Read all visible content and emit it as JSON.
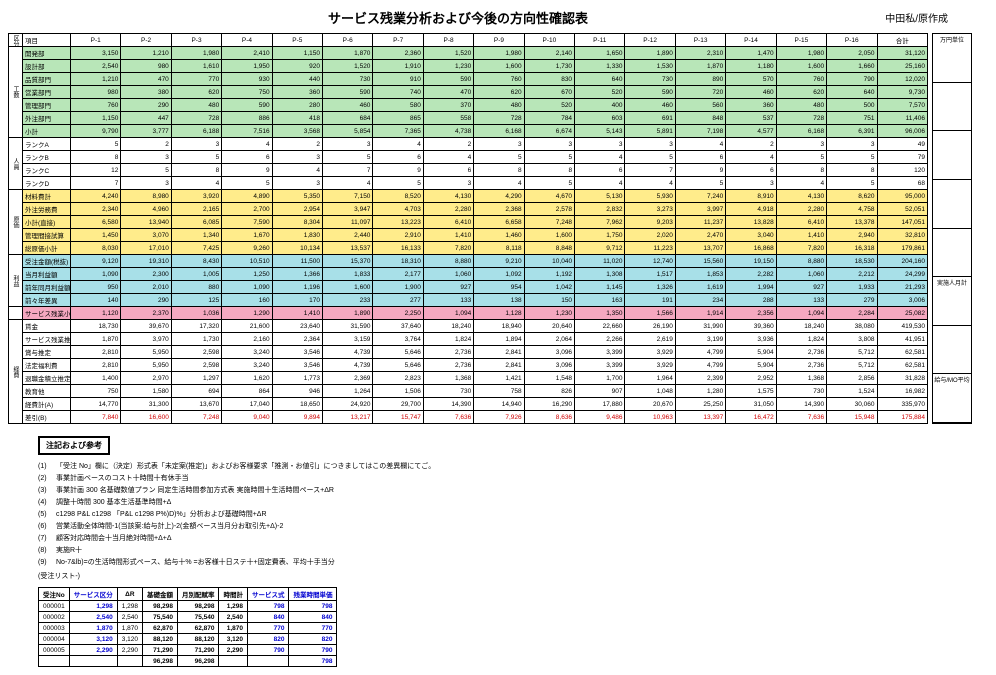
{
  "title": "サービス残業分析および今後の方向性確認表",
  "date_label": "中田私/原作成",
  "columns": [
    "区分",
    "項目",
    "P-1",
    "P-2",
    "P-3",
    "P-4",
    "P-5",
    "P-6",
    "P-7",
    "P-8",
    "P-9",
    "P-10",
    "P-11",
    "P-12",
    "P-13",
    "P-14",
    "P-15",
    "P-16",
    "合計"
  ],
  "side_labels": [
    "万円単位",
    "",
    "",
    "",
    "",
    "実施人月計",
    "",
    "給与/MO平均"
  ],
  "sections": [
    {
      "class": "sec-green",
      "vlabel": "工数",
      "rows": [
        {
          "label": "開発部",
          "v": [
            "3,150",
            "1,210",
            "1,980",
            "2,410",
            "1,150",
            "1,870",
            "2,360",
            "1,520",
            "1,980",
            "2,140",
            "1,650",
            "1,890",
            "2,310",
            "1,470",
            "1,980",
            "2,050",
            "31,120"
          ]
        },
        {
          "label": "設計部",
          "v": [
            "2,540",
            "980",
            "1,610",
            "1,950",
            "920",
            "1,520",
            "1,910",
            "1,230",
            "1,600",
            "1,730",
            "1,330",
            "1,530",
            "1,870",
            "1,180",
            "1,600",
            "1,660",
            "25,160"
          ]
        },
        {
          "label": "品質部門",
          "v": [
            "1,210",
            "470",
            "770",
            "930",
            "440",
            "730",
            "910",
            "590",
            "760",
            "830",
            "640",
            "730",
            "890",
            "570",
            "760",
            "790",
            "12,020"
          ]
        },
        {
          "label": "営業部門",
          "v": [
            "980",
            "380",
            "620",
            "750",
            "360",
            "590",
            "740",
            "470",
            "620",
            "670",
            "520",
            "590",
            "720",
            "460",
            "620",
            "640",
            "9,730"
          ]
        },
        {
          "label": "管理部門",
          "v": [
            "760",
            "290",
            "480",
            "590",
            "280",
            "460",
            "580",
            "370",
            "480",
            "520",
            "400",
            "460",
            "560",
            "360",
            "480",
            "500",
            "7,570"
          ]
        },
        {
          "label": "外注部門",
          "v": [
            "1,150",
            "447",
            "728",
            "886",
            "418",
            "684",
            "865",
            "558",
            "728",
            "784",
            "603",
            "691",
            "848",
            "537",
            "728",
            "751",
            "11,406"
          ]
        },
        {
          "label": "小計",
          "v": [
            "9,790",
            "3,777",
            "6,188",
            "7,516",
            "3,568",
            "5,854",
            "7,365",
            "4,738",
            "6,168",
            "6,674",
            "5,143",
            "5,891",
            "7,198",
            "4,577",
            "6,168",
            "6,391",
            "96,006"
          ]
        }
      ]
    },
    {
      "class": "sec-white",
      "vlabel": "人員",
      "rows": [
        {
          "label": "ランクA",
          "v": [
            "5",
            "2",
            "3",
            "4",
            "2",
            "3",
            "4",
            "2",
            "3",
            "3",
            "3",
            "3",
            "4",
            "2",
            "3",
            "3",
            "49"
          ]
        },
        {
          "label": "ランクB",
          "v": [
            "8",
            "3",
            "5",
            "6",
            "3",
            "5",
            "6",
            "4",
            "5",
            "5",
            "4",
            "5",
            "6",
            "4",
            "5",
            "5",
            "79"
          ]
        },
        {
          "label": "ランクC",
          "v": [
            "12",
            "5",
            "8",
            "9",
            "4",
            "7",
            "9",
            "6",
            "8",
            "8",
            "6",
            "7",
            "9",
            "6",
            "8",
            "8",
            "120"
          ]
        },
        {
          "label": "ランクD",
          "v": [
            "7",
            "3",
            "4",
            "5",
            "3",
            "4",
            "5",
            "3",
            "4",
            "5",
            "4",
            "4",
            "5",
            "3",
            "4",
            "5",
            "68"
          ]
        }
      ]
    },
    {
      "class": "sec-yellow",
      "vlabel": "原価",
      "rows": [
        {
          "label": "材料費計",
          "v": [
            "4,240",
            "8,980",
            "3,920",
            "4,890",
            "5,350",
            "7,150",
            "8,520",
            "4,130",
            "4,290",
            "4,670",
            "5,130",
            "5,930",
            "7,240",
            "8,910",
            "4,130",
            "8,620",
            "95,000"
          ]
        },
        {
          "label": "外注労務費",
          "v": [
            "2,340",
            "4,960",
            "2,165",
            "2,700",
            "2,954",
            "3,947",
            "4,703",
            "2,280",
            "2,368",
            "2,578",
            "2,832",
            "3,273",
            "3,997",
            "4,918",
            "2,280",
            "4,758",
            "52,051"
          ]
        },
        {
          "label": "小計(直接)",
          "v": [
            "6,580",
            "13,940",
            "6,085",
            "7,590",
            "8,304",
            "11,097",
            "13,223",
            "6,410",
            "6,658",
            "7,248",
            "7,962",
            "9,203",
            "11,237",
            "13,828",
            "6,410",
            "13,378",
            "147,051"
          ]
        },
        {
          "label": "管理間接試算",
          "v": [
            "1,450",
            "3,070",
            "1,340",
            "1,670",
            "1,830",
            "2,440",
            "2,910",
            "1,410",
            "1,460",
            "1,600",
            "1,750",
            "2,020",
            "2,470",
            "3,040",
            "1,410",
            "2,940",
            "32,810"
          ]
        },
        {
          "label": "総原価小計",
          "v": [
            "8,030",
            "17,010",
            "7,425",
            "9,260",
            "10,134",
            "13,537",
            "16,133",
            "7,820",
            "8,118",
            "8,848",
            "9,712",
            "11,223",
            "13,707",
            "16,868",
            "7,820",
            "16,318",
            "179,861"
          ]
        }
      ]
    },
    {
      "class": "sec-cyan",
      "vlabel": "利益",
      "rows": [
        {
          "label": "受注金額(税抜)",
          "v": [
            "9,120",
            "19,310",
            "8,430",
            "10,510",
            "11,500",
            "15,370",
            "18,310",
            "8,880",
            "9,210",
            "10,040",
            "11,020",
            "12,740",
            "15,560",
            "19,150",
            "8,880",
            "18,530",
            "204,160"
          ]
        },
        {
          "label": "当月利益額",
          "v": [
            "1,090",
            "2,300",
            "1,005",
            "1,250",
            "1,366",
            "1,833",
            "2,177",
            "1,060",
            "1,092",
            "1,192",
            "1,308",
            "1,517",
            "1,853",
            "2,282",
            "1,060",
            "2,212",
            "24,299"
          ]
        },
        {
          "label": "前年同月利益額",
          "v": [
            "950",
            "2,010",
            "880",
            "1,090",
            "1,196",
            "1,600",
            "1,900",
            "927",
            "954",
            "1,042",
            "1,145",
            "1,326",
            "1,619",
            "1,994",
            "927",
            "1,933",
            "21,293"
          ]
        },
        {
          "label": "前々年差異",
          "v": [
            "140",
            "290",
            "125",
            "160",
            "170",
            "233",
            "277",
            "133",
            "138",
            "150",
            "163",
            "191",
            "234",
            "288",
            "133",
            "279",
            "3,006"
          ]
        }
      ]
    },
    {
      "class": "sec-pink",
      "vlabel": "",
      "rows": [
        {
          "label": "サービス残業小計",
          "v": [
            "1,120",
            "2,370",
            "1,036",
            "1,290",
            "1,410",
            "1,890",
            "2,250",
            "1,094",
            "1,128",
            "1,230",
            "1,350",
            "1,566",
            "1,914",
            "2,356",
            "1,094",
            "2,284",
            "25,082"
          ]
        }
      ]
    },
    {
      "class": "sec-gray",
      "vlabel": "経費",
      "rows": [
        {
          "label": "賃金",
          "v": [
            "18,730",
            "39,670",
            "17,320",
            "21,600",
            "23,640",
            "31,590",
            "37,640",
            "18,240",
            "18,940",
            "20,640",
            "22,660",
            "26,190",
            "31,990",
            "39,360",
            "18,240",
            "38,080",
            "419,530"
          ]
        },
        {
          "label": "サービス残業推定",
          "v": [
            "1,870",
            "3,970",
            "1,730",
            "2,160",
            "2,364",
            "3,159",
            "3,764",
            "1,824",
            "1,894",
            "2,064",
            "2,266",
            "2,619",
            "3,199",
            "3,936",
            "1,824",
            "3,808",
            "41,951"
          ]
        },
        {
          "label": "賞与推定",
          "v": [
            "2,810",
            "5,950",
            "2,598",
            "3,240",
            "3,546",
            "4,739",
            "5,646",
            "2,736",
            "2,841",
            "3,096",
            "3,399",
            "3,929",
            "4,799",
            "5,904",
            "2,736",
            "5,712",
            "62,581"
          ]
        },
        {
          "label": "法定福利費",
          "v": [
            "2,810",
            "5,950",
            "2,598",
            "3,240",
            "3,546",
            "4,739",
            "5,646",
            "2,736",
            "2,841",
            "3,096",
            "3,399",
            "3,929",
            "4,799",
            "5,904",
            "2,736",
            "5,712",
            "62,581"
          ]
        },
        {
          "label": "退職金積立推定",
          "v": [
            "1,400",
            "2,970",
            "1,297",
            "1,620",
            "1,773",
            "2,369",
            "2,823",
            "1,368",
            "1,421",
            "1,548",
            "1,700",
            "1,964",
            "2,399",
            "2,952",
            "1,368",
            "2,856",
            "31,828"
          ]
        },
        {
          "label": "教育他",
          "v": [
            "750",
            "1,580",
            "694",
            "864",
            "946",
            "1,264",
            "1,506",
            "730",
            "758",
            "826",
            "907",
            "1,048",
            "1,280",
            "1,575",
            "730",
            "1,524",
            "16,982"
          ]
        },
        {
          "label": "経費計(A)",
          "v": [
            "14,770",
            "31,300",
            "13,670",
            "17,040",
            "18,650",
            "24,920",
            "29,700",
            "14,390",
            "14,940",
            "16,290",
            "17,880",
            "20,670",
            "25,250",
            "31,050",
            "14,390",
            "30,060",
            "335,970"
          ]
        },
        {
          "label": "差引(B)",
          "v": [
            "7,840",
            "16,600",
            "7,248",
            "9,040",
            "9,894",
            "13,217",
            "15,747",
            "7,636",
            "7,926",
            "8,636",
            "9,486",
            "10,963",
            "13,397",
            "16,472",
            "7,636",
            "15,948",
            "175,884"
          ],
          "red": true
        }
      ]
    }
  ],
  "notes_title": "注記および参考",
  "notes": [
    "「受注 No」欄に（決定）形式表「未定案(推定)」およびお客様要求「推測・お値引」につきましてはこの差異欄にてご。",
    "事業計画ベースのコスト十時間十有休手当",
    "事業計画 300 名基礎数値プラン 同定生活時間参加方式表 実施時間十生活時間ペース+ΔR",
    "調整十時間 300 基本生活基準時間+Δ",
    "c1298 P&L c1298 「P&L c1298 P%)D)%」分析および基礎時間+ΔR",
    "営業活動全体時間-1(当該案:給与計上)-2(金額ベース当月分お取引先+Δ)-2",
    "顧客対応時間会十当月絶対時間+Δ+Δ",
    "実施R十",
    "No-7&lb)=の生活時間形式ペース、給与十% =お客様十日ステ十+固定費表、平均十手当分"
  ],
  "subtable": {
    "section_label": "(受注リスト-)",
    "headers": [
      "受注No",
      "サービス区分",
      "ΔR",
      "基礎金額",
      "月別配賦率",
      "時間計",
      "サービス式",
      "残業時間単価"
    ],
    "rows": [
      {
        "c": [
          "000001",
          "1,298",
          "1,298",
          "98,298",
          "98,298",
          "1,298",
          "798",
          "798"
        ]
      },
      {
        "c": [
          "000002",
          "2,540",
          "2,540",
          "75,540",
          "75,540",
          "2,540",
          "840",
          "840"
        ]
      },
      {
        "c": [
          "000003",
          "1,870",
          "1,870",
          "62,870",
          "62,870",
          "1,870",
          "770",
          "770"
        ]
      },
      {
        "c": [
          "000004",
          "3,120",
          "3,120",
          "88,120",
          "88,120",
          "3,120",
          "820",
          "820"
        ]
      },
      {
        "c": [
          "000005",
          "2,290",
          "2,290",
          "71,290",
          "71,290",
          "2,290",
          "790",
          "790"
        ]
      },
      {
        "c": [
          "",
          "",
          "",
          "96,298",
          "96,298",
          "",
          "",
          "798"
        ]
      }
    ]
  },
  "colors": {
    "green": "#b8e6b8",
    "yellow": "#ffec8b",
    "cyan": "#a8e0e8",
    "pink": "#f5a8c0",
    "red_text": "#d00000",
    "blue_text": "#0000d0"
  }
}
